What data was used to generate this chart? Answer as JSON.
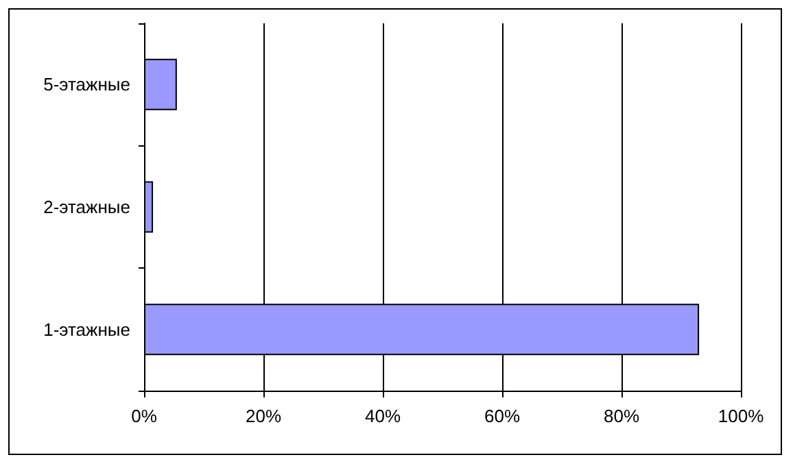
{
  "chart_data": {
    "type": "bar",
    "orientation": "horizontal",
    "categories": [
      "5-этажные",
      "2-этажные",
      "1-этажные"
    ],
    "values": [
      5.5,
      1.5,
      93
    ],
    "color": "#9999ff",
    "xlim": [
      0,
      100
    ],
    "xticks": [
      {
        "value": 0,
        "label": "0%"
      },
      {
        "value": 20,
        "label": "20%"
      },
      {
        "value": 40,
        "label": "40%"
      },
      {
        "value": 60,
        "label": "60%"
      },
      {
        "value": 80,
        "label": "80%"
      },
      {
        "value": 100,
        "label": "100%"
      }
    ],
    "grid": "x"
  }
}
